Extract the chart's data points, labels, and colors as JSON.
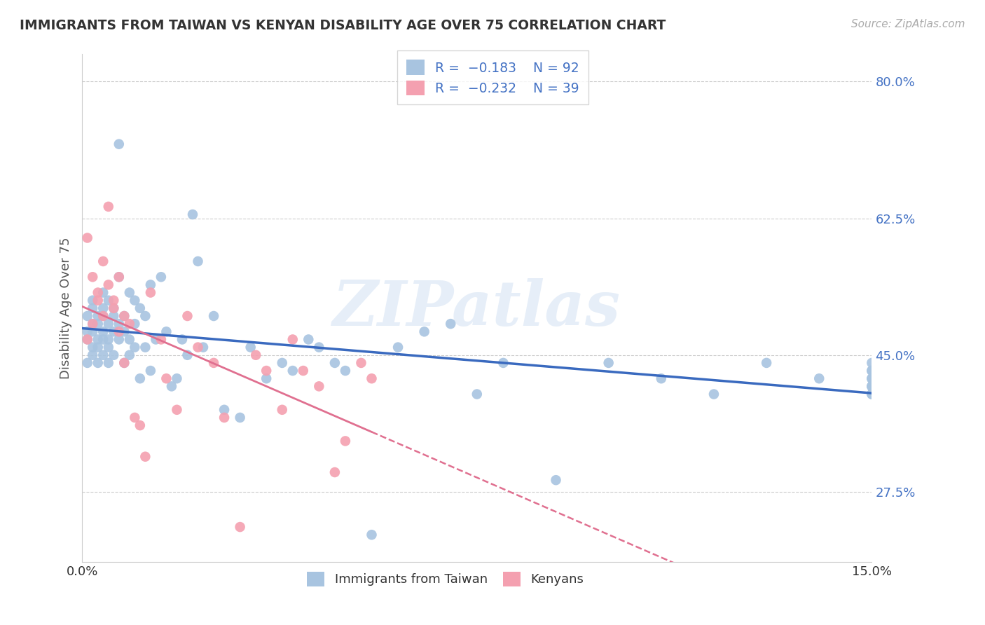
{
  "title": "IMMIGRANTS FROM TAIWAN VS KENYAN DISABILITY AGE OVER 75 CORRELATION CHART",
  "source": "Source: ZipAtlas.com",
  "ylabel_label": "Disability Age Over 75",
  "xmin": 0.0,
  "xmax": 0.15,
  "ymin": 0.185,
  "ymax": 0.835,
  "taiwan_color": "#a8c4e0",
  "kenya_color": "#f4a0b0",
  "taiwan_line_color": "#3a6abf",
  "kenya_line_color": "#e07090",
  "watermark": "ZIPatlas",
  "taiwan_x": [
    0.001,
    0.001,
    0.001,
    0.001,
    0.002,
    0.002,
    0.002,
    0.002,
    0.002,
    0.002,
    0.003,
    0.003,
    0.003,
    0.003,
    0.003,
    0.004,
    0.004,
    0.004,
    0.004,
    0.004,
    0.004,
    0.005,
    0.005,
    0.005,
    0.005,
    0.005,
    0.006,
    0.006,
    0.006,
    0.006,
    0.007,
    0.007,
    0.007,
    0.007,
    0.008,
    0.008,
    0.008,
    0.009,
    0.009,
    0.009,
    0.01,
    0.01,
    0.01,
    0.011,
    0.011,
    0.012,
    0.012,
    0.013,
    0.013,
    0.014,
    0.015,
    0.016,
    0.017,
    0.018,
    0.019,
    0.02,
    0.021,
    0.022,
    0.023,
    0.025,
    0.027,
    0.03,
    0.032,
    0.035,
    0.038,
    0.04,
    0.043,
    0.045,
    0.048,
    0.05,
    0.055,
    0.06,
    0.065,
    0.07,
    0.075,
    0.08,
    0.09,
    0.1,
    0.11,
    0.12,
    0.13,
    0.14,
    0.15,
    0.15,
    0.15,
    0.15,
    0.15,
    0.15,
    0.15,
    0.15,
    0.15,
    0.15
  ],
  "taiwan_y": [
    0.47,
    0.5,
    0.48,
    0.44,
    0.52,
    0.49,
    0.46,
    0.51,
    0.45,
    0.48,
    0.5,
    0.47,
    0.44,
    0.46,
    0.49,
    0.48,
    0.51,
    0.45,
    0.53,
    0.47,
    0.5,
    0.49,
    0.46,
    0.52,
    0.44,
    0.47,
    0.5,
    0.48,
    0.45,
    0.51,
    0.72,
    0.55,
    0.49,
    0.47,
    0.5,
    0.48,
    0.44,
    0.53,
    0.47,
    0.45,
    0.49,
    0.46,
    0.52,
    0.51,
    0.42,
    0.5,
    0.46,
    0.54,
    0.43,
    0.47,
    0.55,
    0.48,
    0.41,
    0.42,
    0.47,
    0.45,
    0.63,
    0.57,
    0.46,
    0.5,
    0.38,
    0.37,
    0.46,
    0.42,
    0.44,
    0.43,
    0.47,
    0.46,
    0.44,
    0.43,
    0.22,
    0.46,
    0.48,
    0.49,
    0.4,
    0.44,
    0.29,
    0.44,
    0.42,
    0.4,
    0.44,
    0.42,
    0.44,
    0.43,
    0.42,
    0.41,
    0.41,
    0.4,
    0.43,
    0.42,
    0.41,
    0.4
  ],
  "kenya_x": [
    0.001,
    0.001,
    0.002,
    0.002,
    0.003,
    0.003,
    0.004,
    0.004,
    0.005,
    0.005,
    0.006,
    0.006,
    0.007,
    0.007,
    0.008,
    0.008,
    0.009,
    0.01,
    0.011,
    0.012,
    0.013,
    0.015,
    0.016,
    0.018,
    0.02,
    0.022,
    0.025,
    0.027,
    0.03,
    0.033,
    0.035,
    0.038,
    0.04,
    0.042,
    0.045,
    0.048,
    0.05,
    0.053,
    0.055
  ],
  "kenya_y": [
    0.47,
    0.6,
    0.55,
    0.49,
    0.53,
    0.52,
    0.57,
    0.5,
    0.64,
    0.54,
    0.52,
    0.51,
    0.55,
    0.48,
    0.5,
    0.44,
    0.49,
    0.37,
    0.36,
    0.32,
    0.53,
    0.47,
    0.42,
    0.38,
    0.5,
    0.46,
    0.44,
    0.37,
    0.23,
    0.45,
    0.43,
    0.38,
    0.47,
    0.43,
    0.41,
    0.3,
    0.34,
    0.44,
    0.42
  ],
  "ytick_vals": [
    0.275,
    0.45,
    0.625,
    0.8
  ],
  "ytick_labels": [
    "27.5%",
    "45.0%",
    "62.5%",
    "80.0%"
  ]
}
